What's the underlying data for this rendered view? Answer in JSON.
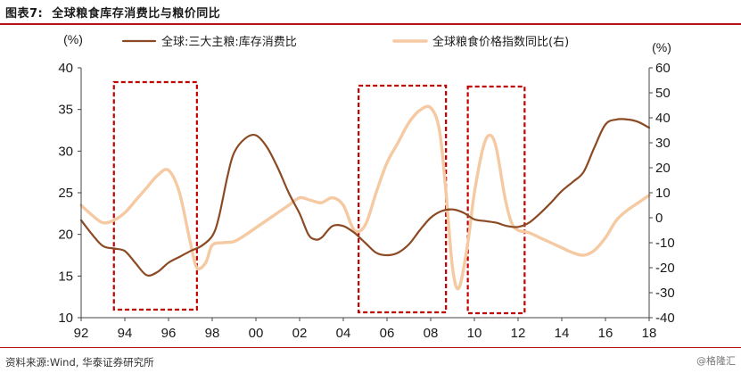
{
  "header": {
    "figure_label": "图表7:",
    "title": "全球粮食库存消费比与粮价同比"
  },
  "footer": {
    "source": "资料来源:Wind, 华泰证券研究所",
    "watermark": "@格隆汇"
  },
  "colors": {
    "stock_series": "#8b4a24",
    "price_series": "#f5c9a2",
    "highlight_box": "#c00000",
    "rule": "#b4101a",
    "axis": "#444444"
  },
  "chart_data": {
    "type": "line",
    "title": "全球粮食库存消费比与粮价同比",
    "left_unit": "(%)",
    "right_unit": "(%)",
    "xlim": [
      1992,
      2018
    ],
    "x_ticks": [
      "92",
      "94",
      "96",
      "98",
      "00",
      "02",
      "04",
      "06",
      "08",
      "10",
      "12",
      "14",
      "16",
      "18"
    ],
    "ylim_left": [
      10,
      40
    ],
    "y_ticks_left": [
      "10",
      "15",
      "20",
      "25",
      "30",
      "35",
      "40"
    ],
    "ylim_right": [
      -40,
      60
    ],
    "y_ticks_right": [
      "-40",
      "-30",
      "-20",
      "-10",
      "0",
      "10",
      "20",
      "30",
      "40",
      "50",
      "60"
    ],
    "legend_position": "top",
    "series": [
      {
        "name": "全球:三大主粮:库存消费比",
        "axis": "left",
        "points": [
          [
            1992.0,
            21.7
          ],
          [
            1992.5,
            20.0
          ],
          [
            1993.0,
            18.6
          ],
          [
            1993.5,
            18.3
          ],
          [
            1994.0,
            18.0
          ],
          [
            1994.5,
            16.5
          ],
          [
            1995.0,
            15.1
          ],
          [
            1995.5,
            15.5
          ],
          [
            1996.0,
            16.6
          ],
          [
            1996.5,
            17.3
          ],
          [
            1997.0,
            18.0
          ],
          [
            1997.5,
            18.6
          ],
          [
            1998.0,
            19.8
          ],
          [
            1998.3,
            22.0
          ],
          [
            1998.7,
            27.0
          ],
          [
            1999.0,
            29.8
          ],
          [
            1999.5,
            31.5
          ],
          [
            2000.0,
            31.9
          ],
          [
            2000.5,
            30.5
          ],
          [
            2001.0,
            28.0
          ],
          [
            2001.5,
            25.0
          ],
          [
            2002.0,
            22.5
          ],
          [
            2002.4,
            20.0
          ],
          [
            2002.7,
            19.4
          ],
          [
            2003.0,
            19.6
          ],
          [
            2003.5,
            21.0
          ],
          [
            2004.0,
            21.0
          ],
          [
            2004.5,
            20.2
          ],
          [
            2005.0,
            19.0
          ],
          [
            2005.5,
            17.8
          ],
          [
            2006.0,
            17.5
          ],
          [
            2006.5,
            17.8
          ],
          [
            2007.0,
            18.8
          ],
          [
            2007.5,
            20.5
          ],
          [
            2008.0,
            22.0
          ],
          [
            2008.5,
            22.8
          ],
          [
            2009.0,
            23.0
          ],
          [
            2009.5,
            22.6
          ],
          [
            2010.0,
            21.8
          ],
          [
            2010.5,
            21.6
          ],
          [
            2011.0,
            21.4
          ],
          [
            2011.5,
            21.0
          ],
          [
            2012.0,
            20.9
          ],
          [
            2012.5,
            21.4
          ],
          [
            2013.0,
            22.5
          ],
          [
            2013.5,
            23.8
          ],
          [
            2014.0,
            25.2
          ],
          [
            2014.5,
            26.3
          ],
          [
            2015.0,
            27.5
          ],
          [
            2015.5,
            30.5
          ],
          [
            2016.0,
            33.2
          ],
          [
            2016.5,
            33.8
          ],
          [
            2017.0,
            33.8
          ],
          [
            2017.5,
            33.5
          ],
          [
            2018.0,
            32.8
          ]
        ]
      },
      {
        "name": "全球粮食价格指数同比(右)",
        "axis": "right",
        "points": [
          [
            1992.0,
            5
          ],
          [
            1992.5,
            1
          ],
          [
            1993.0,
            -2
          ],
          [
            1993.5,
            -1
          ],
          [
            1994.0,
            2
          ],
          [
            1994.5,
            7
          ],
          [
            1995.0,
            12
          ],
          [
            1995.5,
            17
          ],
          [
            1996.0,
            19
          ],
          [
            1996.5,
            10
          ],
          [
            1997.0,
            -10
          ],
          [
            1997.3,
            -20
          ],
          [
            1997.7,
            -18
          ],
          [
            1998.0,
            -11
          ],
          [
            1998.5,
            -10
          ],
          [
            1999.0,
            -9.5
          ],
          [
            1999.5,
            -7
          ],
          [
            2000.0,
            -4
          ],
          [
            2000.5,
            -1
          ],
          [
            2001.0,
            2
          ],
          [
            2001.5,
            5
          ],
          [
            2002.0,
            8
          ],
          [
            2002.5,
            7
          ],
          [
            2003.0,
            6
          ],
          [
            2003.5,
            8
          ],
          [
            2004.0,
            5
          ],
          [
            2004.5,
            -5
          ],
          [
            2005.0,
            -3
          ],
          [
            2005.5,
            10
          ],
          [
            2006.0,
            22
          ],
          [
            2006.5,
            30
          ],
          [
            2007.0,
            38
          ],
          [
            2007.5,
            43
          ],
          [
            2008.0,
            44
          ],
          [
            2008.4,
            35
          ],
          [
            2008.7,
            10
          ],
          [
            2009.0,
            -20
          ],
          [
            2009.3,
            -28
          ],
          [
            2009.7,
            -10
          ],
          [
            2010.0,
            10
          ],
          [
            2010.4,
            28
          ],
          [
            2010.7,
            33
          ],
          [
            2011.0,
            28
          ],
          [
            2011.4,
            8
          ],
          [
            2011.7,
            -2
          ],
          [
            2012.0,
            -5
          ],
          [
            2012.5,
            -6
          ],
          [
            2013.0,
            -8
          ],
          [
            2013.5,
            -10
          ],
          [
            2014.0,
            -12
          ],
          [
            2014.5,
            -14
          ],
          [
            2015.0,
            -15
          ],
          [
            2015.5,
            -13
          ],
          [
            2016.0,
            -8
          ],
          [
            2016.5,
            -1
          ],
          [
            2017.0,
            3
          ],
          [
            2017.5,
            6
          ],
          [
            2018.0,
            9
          ]
        ]
      }
    ],
    "highlight_periods": [
      [
        1993.5,
        1997.3
      ],
      [
        2004.7,
        2008.7
      ],
      [
        2009.7,
        2012.3
      ]
    ]
  }
}
